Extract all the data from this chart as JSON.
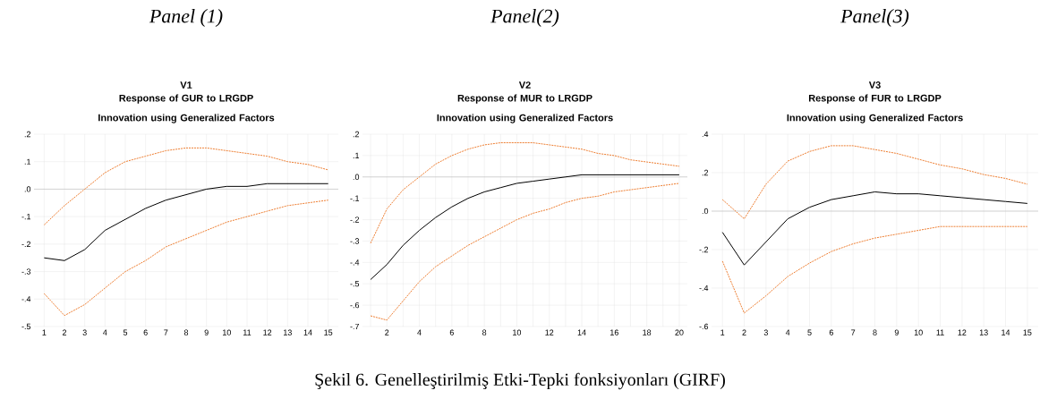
{
  "chart_data": [
    {
      "type": "line",
      "title": "Panel (1)",
      "subtitle": "V1",
      "annotations": [
        "Response of GUR to LRGDP Innovation using Generalized Factors"
      ],
      "categories": [
        "1",
        "2",
        "3",
        "4",
        "5",
        "6",
        "7",
        "8",
        "9",
        "10",
        "11",
        "12",
        "13",
        "14",
        "15"
      ],
      "ylim": [
        -0.5,
        0.2
      ],
      "yticks": [
        {
          "value": -0.5,
          "label": "-.5"
        },
        {
          "value": -0.4,
          "label": "-.4"
        },
        {
          "value": -0.3,
          "label": "-.3"
        },
        {
          "value": -0.2,
          "label": "-.2"
        },
        {
          "value": -0.1,
          "label": "-.1"
        },
        {
          "value": 0,
          "label": ".0"
        },
        {
          "value": 0.1,
          "label": ".1"
        },
        {
          "value": 0.2,
          "label": ".2"
        }
      ],
      "grid": true,
      "marker": "none",
      "series": [
        {
          "color": "#000000",
          "line_style": "solid",
          "values": [
            -0.25,
            -0.26,
            -0.22,
            -0.15,
            -0.11,
            -0.07,
            -0.04,
            -0.02,
            0.0,
            0.01,
            0.01,
            0.02,
            0.02,
            0.02,
            0.02
          ]
        },
        {
          "color": "#ed7d31",
          "line_style": "dotted",
          "values": [
            -0.13,
            -0.06,
            0.0,
            0.06,
            0.1,
            0.12,
            0.14,
            0.15,
            0.15,
            0.14,
            0.13,
            0.12,
            0.1,
            0.09,
            0.07
          ]
        },
        {
          "color": "#ed7d31",
          "line_style": "dotted",
          "values": [
            -0.38,
            -0.46,
            -0.42,
            -0.36,
            -0.3,
            -0.26,
            -0.21,
            -0.18,
            -0.15,
            -0.12,
            -0.1,
            -0.08,
            -0.06,
            -0.05,
            -0.04
          ]
        }
      ]
    },
    {
      "type": "line",
      "title": "Panel(2)",
      "subtitle": "V2",
      "annotations": [
        "Response of MUR to LRGDP Innovation using Generalized Factors",
        "Şekil 6.  Genelleştirilmiş Etki-Tepki fonksiyonları (GIRF)"
      ],
      "categories": [
        null,
        "2",
        null,
        "4",
        null,
        "6",
        null,
        "8",
        null,
        "10",
        null,
        "12",
        null,
        "14",
        null,
        "16",
        null,
        "18",
        null,
        "20"
      ],
      "ylim": [
        -0.7,
        0.2
      ],
      "yticks": [
        {
          "value": -0.7,
          "label": "-.7"
        },
        {
          "value": -0.6,
          "label": "-.6"
        },
        {
          "value": -0.5,
          "label": "-.5"
        },
        {
          "value": -0.4,
          "label": "-.4"
        },
        {
          "value": -0.3,
          "label": "-.3"
        },
        {
          "value": -0.2,
          "label": "-.2"
        },
        {
          "value": -0.1,
          "label": "-.1"
        },
        {
          "value": 0,
          "label": ".0"
        },
        {
          "value": 0.1,
          "label": ".1"
        },
        {
          "value": 0.2,
          "label": ".2"
        }
      ],
      "grid": true,
      "marker": "none",
      "series": [
        {
          "color": "#000000",
          "line_style": "solid",
          "values": [
            -0.48,
            -0.41,
            -0.32,
            -0.25,
            -0.19,
            -0.14,
            -0.1,
            -0.07,
            -0.05,
            -0.03,
            -0.02,
            -0.01,
            0.0,
            0.01,
            0.01,
            0.01,
            0.01,
            0.01,
            0.01,
            0.01
          ]
        },
        {
          "color": "#ed7d31",
          "line_style": "dotted",
          "values": [
            -0.31,
            -0.15,
            -0.06,
            0.0,
            0.06,
            0.1,
            0.13,
            0.15,
            0.16,
            0.16,
            0.16,
            0.15,
            0.14,
            0.13,
            0.11,
            0.1,
            0.08,
            0.07,
            0.06,
            0.05
          ]
        },
        {
          "color": "#ed7d31",
          "line_style": "dotted",
          "values": [
            -0.65,
            -0.67,
            -0.58,
            -0.49,
            -0.42,
            -0.37,
            -0.32,
            -0.28,
            -0.24,
            -0.2,
            -0.17,
            -0.15,
            -0.12,
            -0.1,
            -0.09,
            -0.07,
            -0.06,
            -0.05,
            -0.04,
            -0.03
          ]
        }
      ]
    },
    {
      "type": "line",
      "title": "Panel(3)",
      "subtitle": "V3",
      "annotations": [
        "Response of FUR to LRGDP Innovation using Generalized Factors"
      ],
      "categories": [
        "1",
        "2",
        "3",
        "4",
        "5",
        "6",
        "7",
        "8",
        "9",
        "10",
        "11",
        "12",
        "13",
        "14",
        "15"
      ],
      "ylim": [
        -0.6,
        0.4
      ],
      "yticks": [
        {
          "value": -0.6,
          "label": "-.6"
        },
        {
          "value": -0.4,
          "label": "-.4"
        },
        {
          "value": -0.2,
          "label": "-.2"
        },
        {
          "value": 0,
          "label": ".0"
        },
        {
          "value": 0.2,
          "label": ".2"
        },
        {
          "value": 0.4,
          "label": ".4"
        }
      ],
      "grid": true,
      "marker": "none",
      "series": [
        {
          "color": "#000000",
          "line_style": "solid",
          "values": [
            -0.11,
            -0.28,
            -0.16,
            -0.04,
            0.02,
            0.06,
            0.08,
            0.1,
            0.09,
            0.09,
            0.08,
            0.07,
            0.06,
            0.05,
            0.04
          ]
        },
        {
          "color": "#ed7d31",
          "line_style": "dotted",
          "values": [
            0.06,
            -0.04,
            0.14,
            0.26,
            0.31,
            0.34,
            0.34,
            0.32,
            0.3,
            0.27,
            0.24,
            0.22,
            0.19,
            0.17,
            0.14
          ]
        },
        {
          "color": "#ed7d31",
          "line_style": "dotted",
          "values": [
            -0.26,
            -0.53,
            -0.44,
            -0.34,
            -0.27,
            -0.21,
            -0.17,
            -0.14,
            -0.12,
            -0.1,
            -0.08,
            -0.08,
            -0.08,
            -0.08,
            -0.08
          ]
        }
      ]
    }
  ]
}
